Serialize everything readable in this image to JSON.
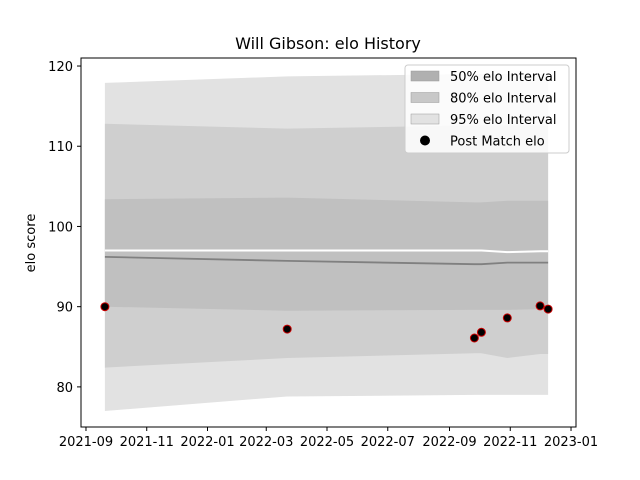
{
  "chart_data": {
    "type": "area",
    "title": "Will Gibson: elo History",
    "xlabel": "",
    "ylabel": "elo score",
    "x_type": "date",
    "xlim": [
      "2021-08-27",
      "2023-01-06"
    ],
    "ylim": [
      75,
      121
    ],
    "x_ticks": [
      "2021-09-01",
      "2021-11-01",
      "2022-01-01",
      "2022-03-01",
      "2022-05-01",
      "2022-07-01",
      "2022-09-01",
      "2022-11-01",
      "2023-01-01"
    ],
    "x_tick_labels": [
      "2021-09",
      "2021-11",
      "2022-01",
      "2022-03",
      "2022-05",
      "2022-07",
      "2022-09",
      "2022-11",
      "2023-01"
    ],
    "y_ticks": [
      80,
      90,
      100,
      110,
      120
    ],
    "y_tick_labels": [
      "80",
      "90",
      "100",
      "110",
      "120"
    ],
    "dates": [
      "2021-09-20",
      "2022-03-22",
      "2022-09-26",
      "2022-10-03",
      "2022-10-29",
      "2022-12-01",
      "2022-12-09"
    ],
    "mean": [
      96.2,
      95.7,
      95.3,
      95.3,
      95.5,
      95.5,
      95.5
    ],
    "white_line": [
      97.0,
      97.0,
      97.0,
      97.0,
      96.8,
      96.9,
      96.9
    ],
    "band_50": {
      "lower": [
        90.0,
        89.5,
        89.6,
        89.6,
        89.6,
        89.7,
        89.7
      ],
      "upper": [
        103.4,
        103.6,
        103.0,
        103.0,
        103.2,
        103.2,
        103.2
      ]
    },
    "band_80": {
      "lower": [
        82.4,
        83.6,
        84.2,
        84.2,
        83.6,
        84.1,
        84.1
      ],
      "upper": [
        112.8,
        112.2,
        112.6,
        112.6,
        112.6,
        112.6,
        112.6
      ]
    },
    "band_95": {
      "lower": [
        77.0,
        78.8,
        79.0,
        79.0,
        79.0,
        79.0,
        79.0
      ],
      "upper": [
        117.9,
        118.7,
        119.0,
        119.0,
        119.0,
        119.0,
        119.0
      ]
    },
    "points": [
      {
        "x": "2021-09-20",
        "y": 90.0
      },
      {
        "x": "2022-03-22",
        "y": 87.2
      },
      {
        "x": "2022-09-26",
        "y": 86.1
      },
      {
        "x": "2022-10-03",
        "y": 86.8
      },
      {
        "x": "2022-10-29",
        "y": 88.6
      },
      {
        "x": "2022-12-01",
        "y": 90.1
      },
      {
        "x": "2022-12-09",
        "y": 89.7
      }
    ],
    "legend": {
      "position": "top-right",
      "entries": [
        {
          "label": "50% elo Interval",
          "kind": "band",
          "color": "#b0b0b0"
        },
        {
          "label": "80% elo Interval",
          "kind": "band",
          "color": "#c8c8c8"
        },
        {
          "label": "95% elo Interval",
          "kind": "band",
          "color": "#e2e2e2"
        },
        {
          "label": "Post Match elo",
          "kind": "marker",
          "color": "#000000"
        }
      ]
    },
    "colors": {
      "band_95": "#e2e2e2",
      "band_80": "#cfcfcf",
      "band_50": "#c0c0c0",
      "mean_line": "#808080",
      "white_line": "#ffffff",
      "marker_fill": "#000000",
      "marker_edge": "#cc0000"
    },
    "grid": false
  }
}
